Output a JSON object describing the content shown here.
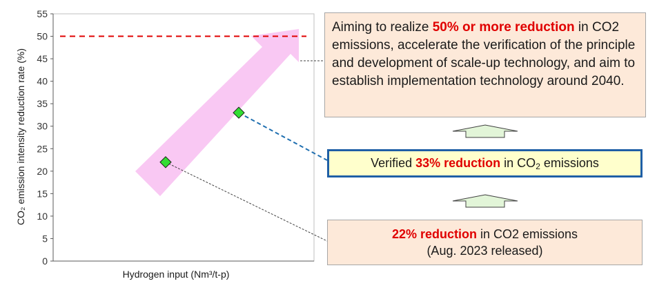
{
  "chart_data": {
    "type": "scatter",
    "xlabel": "Hydrogen input (Nm³/t-p)",
    "ylabel": "CO₂ emission intensity reduction rate (%)",
    "ylim": [
      0,
      55
    ],
    "yticks": [
      0,
      5,
      10,
      15,
      20,
      25,
      30,
      35,
      40,
      45,
      50,
      55
    ],
    "series": [
      {
        "values": [
          22,
          33
        ]
      }
    ],
    "target_line": {
      "y": 50,
      "style": "dashed",
      "color": "#e00000"
    },
    "trend_arrow_color": "#f9c8f3",
    "point_color": "#33dd33"
  },
  "boxes": {
    "target": {
      "pre": "Aiming to realize ",
      "highlight": "50% or more reduction",
      "post": " in CO2 emissions, accelerate the verification of the principle and development of scale-up technology, and aim to establish implementation technology around 2040."
    },
    "verified": {
      "pre": "Verified ",
      "highlight": "33% reduction",
      "mid": " in CO",
      "sub": "2",
      "post": " emissions"
    },
    "released": {
      "highlight": "22% reduction",
      "post": " in CO2 emissions",
      "line2": "(Aug. 2023 released)"
    }
  },
  "colors": {
    "highlight": "#e00000",
    "box_fill": "#fde9d9",
    "verified_fill": "#ffffcc",
    "verified_border": "#1f5fa6",
    "up_arrow_fill": "#e2f5d8"
  }
}
